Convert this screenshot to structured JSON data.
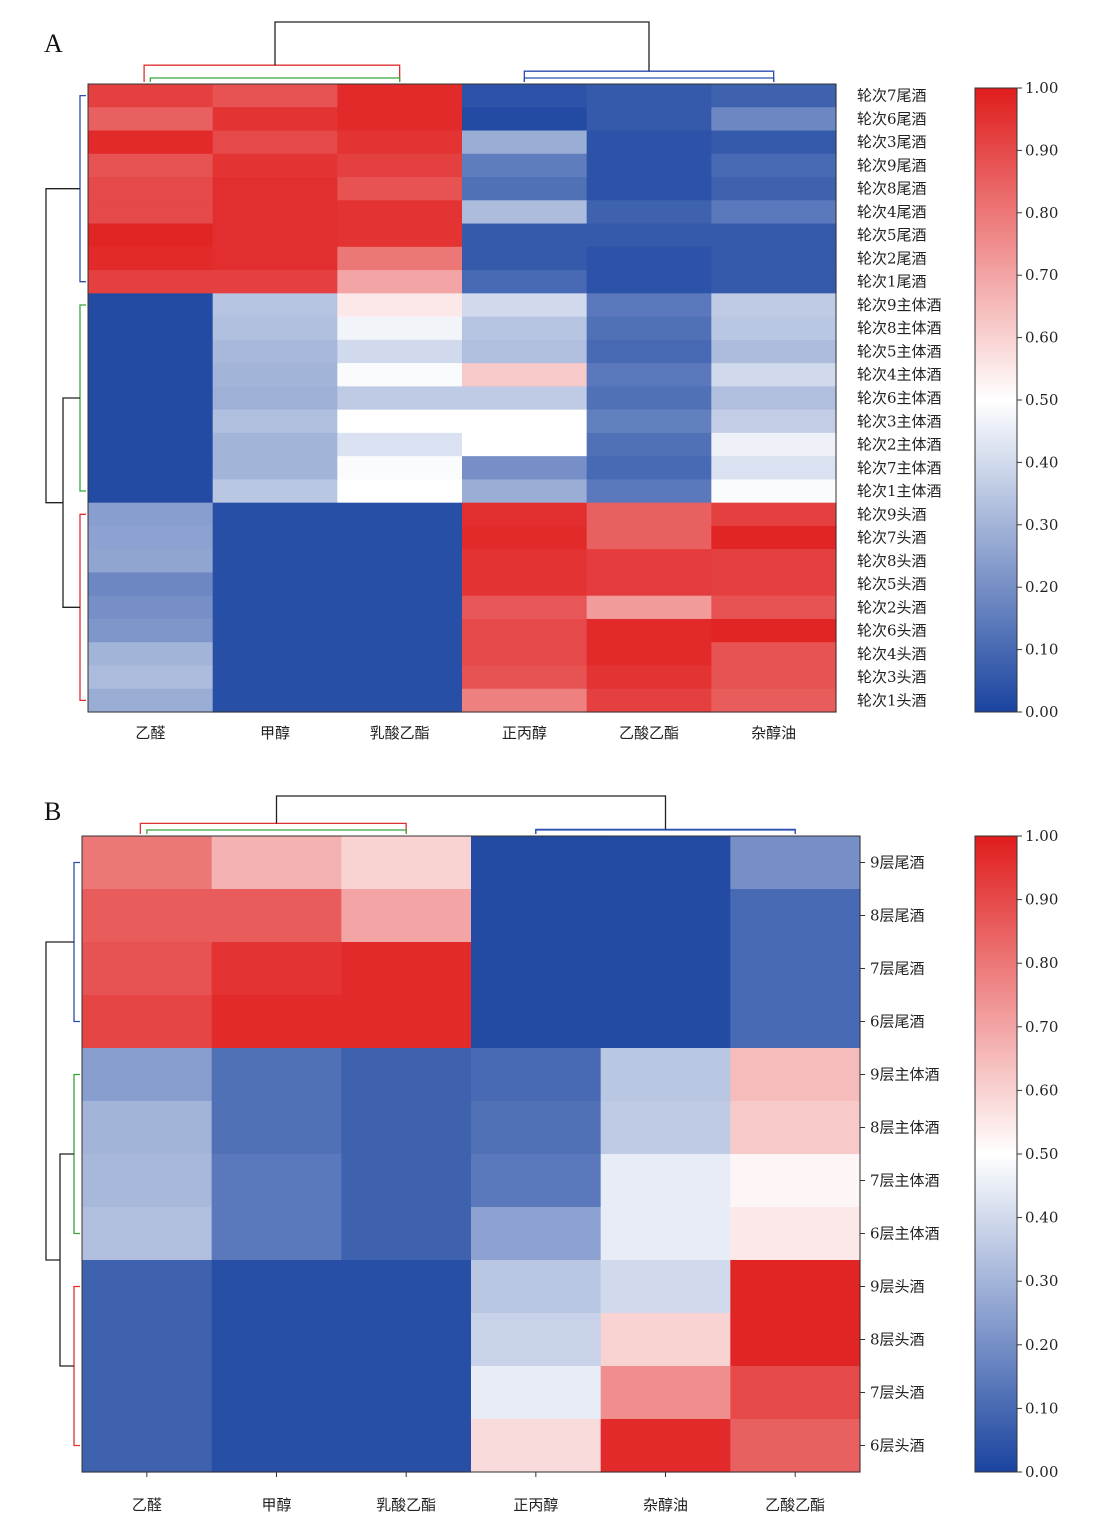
{
  "chart_data": [
    {
      "type": "heatmap",
      "panel": "A",
      "columns": [
        "乙醛",
        "甲醇",
        "乳酸乙酯",
        "正丙醇",
        "乙酸乙酯",
        "杂醇油"
      ],
      "rows": [
        "轮次7尾酒",
        "轮次6尾酒",
        "轮次3尾酒",
        "轮次9尾酒",
        "轮次8尾酒",
        "轮次4尾酒",
        "轮次5尾酒",
        "轮次2尾酒",
        "轮次1尾酒",
        "轮次9主体酒",
        "轮次8主体酒",
        "轮次5主体酒",
        "轮次4主体酒",
        "轮次6主体酒",
        "轮次3主体酒",
        "轮次2主体酒",
        "轮次7主体酒",
        "轮次1主体酒",
        "轮次9头酒",
        "轮次7头酒",
        "轮次8头酒",
        "轮次5头酒",
        "轮次2头酒",
        "轮次6头酒",
        "轮次4头酒",
        "轮次3头酒",
        "轮次1头酒"
      ],
      "values": [
        [
          0.92,
          0.88,
          0.97,
          0.04,
          0.06,
          0.08
        ],
        [
          0.85,
          0.95,
          0.97,
          0.02,
          0.06,
          0.18
        ],
        [
          0.97,
          0.9,
          0.95,
          0.28,
          0.04,
          0.06
        ],
        [
          0.88,
          0.95,
          0.92,
          0.15,
          0.04,
          0.1
        ],
        [
          0.9,
          0.96,
          0.88,
          0.12,
          0.04,
          0.08
        ],
        [
          0.9,
          0.96,
          0.95,
          0.32,
          0.08,
          0.14
        ],
        [
          0.98,
          0.96,
          0.95,
          0.06,
          0.06,
          0.06
        ],
        [
          0.97,
          0.96,
          0.8,
          0.06,
          0.04,
          0.06
        ],
        [
          0.92,
          0.92,
          0.7,
          0.1,
          0.04,
          0.06
        ],
        [
          0.02,
          0.34,
          0.55,
          0.4,
          0.14,
          0.36
        ],
        [
          0.02,
          0.33,
          0.47,
          0.34,
          0.12,
          0.35
        ],
        [
          0.02,
          0.31,
          0.4,
          0.33,
          0.1,
          0.32
        ],
        [
          0.02,
          0.3,
          0.49,
          0.62,
          0.14,
          0.4
        ],
        [
          0.02,
          0.29,
          0.36,
          0.36,
          0.12,
          0.33
        ],
        [
          0.02,
          0.33,
          0.5,
          0.5,
          0.16,
          0.37
        ],
        [
          0.02,
          0.3,
          0.42,
          0.5,
          0.12,
          0.46
        ],
        [
          0.02,
          0.3,
          0.49,
          0.2,
          0.1,
          0.42
        ],
        [
          0.02,
          0.35,
          0.5,
          0.28,
          0.14,
          0.49
        ],
        [
          0.24,
          0.03,
          0.03,
          0.96,
          0.85,
          0.92
        ],
        [
          0.25,
          0.03,
          0.03,
          0.97,
          0.85,
          0.98
        ],
        [
          0.26,
          0.03,
          0.03,
          0.95,
          0.93,
          0.92
        ],
        [
          0.18,
          0.03,
          0.03,
          0.95,
          0.93,
          0.92
        ],
        [
          0.2,
          0.03,
          0.03,
          0.87,
          0.72,
          0.88
        ],
        [
          0.22,
          0.03,
          0.03,
          0.9,
          0.97,
          0.98
        ],
        [
          0.3,
          0.03,
          0.03,
          0.9,
          0.97,
          0.88
        ],
        [
          0.32,
          0.03,
          0.03,
          0.88,
          0.95,
          0.88
        ],
        [
          0.28,
          0.03,
          0.03,
          0.78,
          0.92,
          0.86
        ]
      ],
      "colorbar": {
        "min": 0.0,
        "max": 1.0,
        "ticks": [
          "0.00",
          "0.10",
          "0.20",
          "0.30",
          "0.40",
          "0.50",
          "0.60",
          "0.70",
          "0.80",
          "0.90",
          "1.00"
        ]
      },
      "colormap": {
        "low": "#1a44a0",
        "mid": "#ffffff",
        "high": "#e01c1c"
      },
      "dendrogram": {
        "column_clusters": [
          [
            "乙醛",
            "甲醇",
            "乳酸乙酯"
          ],
          [
            "正丙醇",
            "乙酸乙酯",
            "杂醇油"
          ]
        ],
        "row_clusters": [
          "尾酒",
          "主体酒",
          "头酒"
        ]
      }
    },
    {
      "type": "heatmap",
      "panel": "B",
      "columns": [
        "乙醛",
        "甲醇",
        "乳酸乙酯",
        "正丙醇",
        "杂醇油",
        "乙酸乙酯"
      ],
      "rows": [
        "9层尾酒",
        "8层尾酒",
        "7层尾酒",
        "6层尾酒",
        "9层主体酒",
        "8层主体酒",
        "7层主体酒",
        "6层主体酒",
        "9层头酒",
        "8层头酒",
        "7层头酒",
        "6层头酒"
      ],
      "values": [
        [
          0.8,
          0.67,
          0.6,
          0.02,
          0.02,
          0.2
        ],
        [
          0.86,
          0.86,
          0.7,
          0.02,
          0.02,
          0.1
        ],
        [
          0.88,
          0.95,
          0.97,
          0.02,
          0.02,
          0.1
        ],
        [
          0.91,
          0.97,
          0.97,
          0.02,
          0.02,
          0.1
        ],
        [
          0.24,
          0.12,
          0.08,
          0.1,
          0.35,
          0.65
        ],
        [
          0.3,
          0.12,
          0.08,
          0.12,
          0.36,
          0.62
        ],
        [
          0.31,
          0.14,
          0.08,
          0.14,
          0.45,
          0.52
        ],
        [
          0.33,
          0.14,
          0.08,
          0.25,
          0.45,
          0.55
        ],
        [
          0.08,
          0.03,
          0.03,
          0.35,
          0.4,
          0.98
        ],
        [
          0.08,
          0.03,
          0.03,
          0.38,
          0.6,
          0.98
        ],
        [
          0.08,
          0.03,
          0.03,
          0.45,
          0.75,
          0.9
        ],
        [
          0.08,
          0.03,
          0.03,
          0.58,
          0.97,
          0.85
        ]
      ],
      "colorbar": {
        "min": 0.0,
        "max": 1.0,
        "ticks": [
          "0.00",
          "0.10",
          "0.20",
          "0.30",
          "0.40",
          "0.50",
          "0.60",
          "0.70",
          "0.80",
          "0.90",
          "1.00"
        ]
      },
      "colormap": {
        "low": "#1a44a0",
        "mid": "#ffffff",
        "high": "#e01c1c"
      },
      "dendrogram": {
        "column_clusters": [
          [
            "乙醛",
            "甲醇",
            "乳酸乙酯"
          ],
          [
            "正丙醇",
            "杂醇油",
            "乙酸乙酯"
          ]
        ],
        "row_clusters": [
          "尾酒",
          "主体酒",
          "头酒"
        ]
      }
    }
  ]
}
